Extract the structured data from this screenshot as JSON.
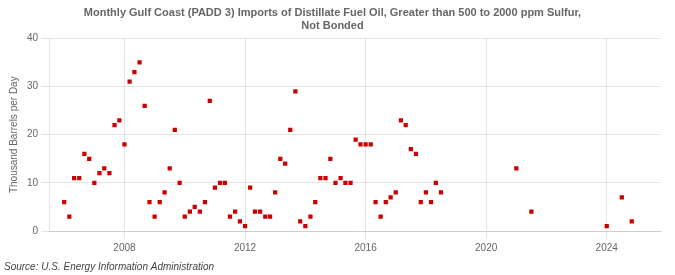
{
  "chart_data": {
    "type": "scatter",
    "title": "Monthly Gulf Coast (PADD 3) Imports of Distillate Fuel Oil, Greater than 500 to 2000 ppm Sulfur,\nNot Bonded",
    "ylabel": "Thousand Barrels per Day",
    "annotations": [
      "Source: U.S. Energy Information Administration"
    ],
    "color": "#cc0000",
    "marker": "square",
    "grid": true,
    "xlim": [
      2005.5,
      2025.8
    ],
    "ylim": [
      0,
      40
    ],
    "xticks": [
      2008,
      2012,
      2016,
      2020,
      2024
    ],
    "yticks": [
      0,
      10,
      20,
      30,
      40
    ],
    "x": [
      2006.0,
      2006.17,
      2006.33,
      2006.5,
      2006.67,
      2006.83,
      2007.0,
      2007.17,
      2007.33,
      2007.5,
      2007.67,
      2007.83,
      2008.0,
      2008.17,
      2008.33,
      2008.5,
      2008.67,
      2008.83,
      2009.0,
      2009.17,
      2009.33,
      2009.5,
      2009.67,
      2009.83,
      2010.0,
      2010.17,
      2010.33,
      2010.5,
      2010.67,
      2010.83,
      2011.0,
      2011.17,
      2011.33,
      2011.5,
      2011.67,
      2011.83,
      2012.0,
      2012.17,
      2012.33,
      2012.5,
      2012.67,
      2012.83,
      2013.0,
      2013.17,
      2013.33,
      2013.5,
      2013.67,
      2013.83,
      2014.0,
      2014.17,
      2014.33,
      2014.5,
      2014.67,
      2014.83,
      2015.0,
      2015.17,
      2015.33,
      2015.5,
      2015.67,
      2015.83,
      2016.0,
      2016.17,
      2016.33,
      2016.5,
      2016.67,
      2016.83,
      2017.0,
      2017.17,
      2017.33,
      2017.5,
      2017.67,
      2017.83,
      2018.0,
      2018.17,
      2018.33,
      2018.5,
      2021.0,
      2021.5,
      2024.0,
      2024.5,
      2024.83
    ],
    "values": [
      6,
      3,
      11,
      11,
      16,
      15,
      10,
      12,
      13,
      12,
      22,
      23,
      18,
      31,
      33,
      35,
      26,
      6,
      3,
      6,
      8,
      13,
      21,
      10,
      3,
      4,
      5,
      4,
      6,
      27,
      9,
      10,
      10,
      3,
      4,
      2,
      1,
      9,
      4,
      4,
      3,
      3,
      8,
      15,
      14,
      21,
      29,
      2,
      1,
      3,
      6,
      11,
      11,
      15,
      10,
      11,
      10,
      10,
      19,
      18,
      18,
      18,
      6,
      3,
      6,
      7,
      8,
      23,
      22,
      17,
      16,
      6,
      8,
      6,
      10,
      8,
      13,
      4,
      1,
      7,
      2
    ]
  }
}
